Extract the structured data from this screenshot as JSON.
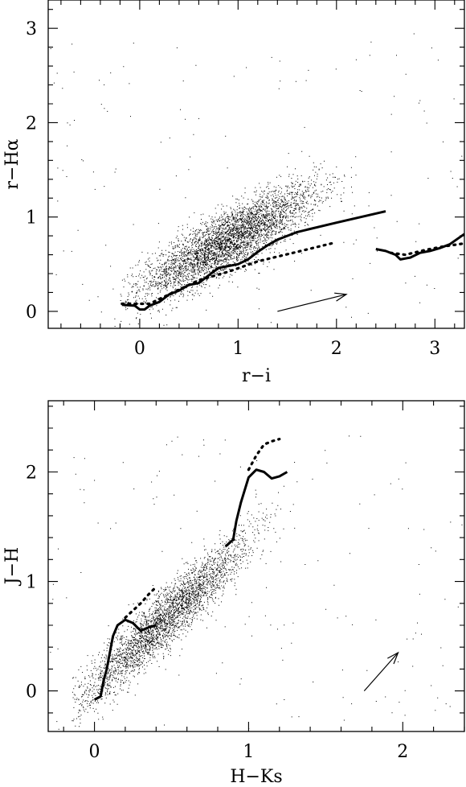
{
  "chart_data": [
    {
      "type": "scatter",
      "title": "",
      "xlabel": "r−i",
      "ylabel": "r−Hα",
      "xlim": [
        -0.93,
        3.3
      ],
      "ylim": [
        -0.18,
        3.3
      ],
      "xticks": [
        0,
        1,
        2,
        3
      ],
      "yticks": [
        0,
        1,
        2,
        3
      ],
      "grid": false,
      "legend": "none",
      "point_cloud": {
        "description_values": "dense cloud of individual stars",
        "n_points": 4200,
        "center": [
          0.9,
          0.75
        ],
        "spread": [
          0.45,
          0.35
        ],
        "slope": 0.55,
        "x_range": [
          0.0,
          2.2
        ],
        "color": "#000000"
      },
      "series": [
        {
          "style": "solid",
          "points": [
            [
              -0.18,
              0.07
            ],
            [
              -0.05,
              0.06
            ],
            [
              0.0,
              0.02
            ],
            [
              0.05,
              0.02
            ],
            [
              0.1,
              0.06
            ],
            [
              0.2,
              0.1
            ],
            [
              0.3,
              0.18
            ],
            [
              0.4,
              0.22
            ],
            [
              0.5,
              0.28
            ],
            [
              0.6,
              0.3
            ],
            [
              0.7,
              0.38
            ],
            [
              0.8,
              0.46
            ],
            [
              0.9,
              0.48
            ],
            [
              1.0,
              0.5
            ],
            [
              1.1,
              0.55
            ],
            [
              1.2,
              0.63
            ],
            [
              1.3,
              0.7
            ],
            [
              1.4,
              0.76
            ],
            [
              1.5,
              0.8
            ],
            [
              1.6,
              0.84
            ],
            [
              2.0,
              0.94
            ],
            [
              2.5,
              1.06
            ]
          ]
        },
        {
          "style": "dotted",
          "points": [
            [
              -0.18,
              0.08
            ],
            [
              0.1,
              0.08
            ],
            [
              0.3,
              0.18
            ],
            [
              0.6,
              0.33
            ],
            [
              0.9,
              0.42
            ],
            [
              1.2,
              0.53
            ],
            [
              1.6,
              0.63
            ],
            [
              1.95,
              0.72
            ]
          ]
        },
        {
          "style": "solid",
          "points": [
            [
              2.4,
              0.66
            ],
            [
              2.5,
              0.64
            ],
            [
              2.6,
              0.6
            ],
            [
              2.65,
              0.55
            ],
            [
              2.75,
              0.57
            ],
            [
              2.85,
              0.62
            ],
            [
              2.95,
              0.64
            ],
            [
              3.05,
              0.67
            ],
            [
              3.15,
              0.71
            ],
            [
              3.3,
              0.82
            ]
          ]
        },
        {
          "style": "dotted",
          "points": [
            [
              2.55,
              0.62
            ],
            [
              2.7,
              0.6
            ],
            [
              2.9,
              0.65
            ],
            [
              3.1,
              0.69
            ],
            [
              3.3,
              0.72
            ]
          ]
        }
      ],
      "reddening_vector": {
        "from": [
          1.4,
          0.0
        ],
        "to": [
          2.1,
          0.18
        ]
      }
    },
    {
      "type": "scatter",
      "title": "",
      "xlabel": "H−Ks",
      "ylabel": "J−H",
      "xlim": [
        -0.3,
        2.4
      ],
      "ylim": [
        -0.37,
        2.65
      ],
      "xticks": [
        0,
        1,
        2
      ],
      "yticks": [
        0,
        1,
        2
      ],
      "grid": false,
      "legend": "none",
      "point_cloud": {
        "description_values": "dense cloud of individual stars",
        "n_points": 3200,
        "center": [
          0.45,
          0.65
        ],
        "spread": [
          0.28,
          0.3
        ],
        "slope": 1.3,
        "x_range": [
          0.05,
          1.6
        ],
        "color": "#000000"
      },
      "series": [
        {
          "style": "solid",
          "points": [
            [
              0.0,
              -0.08
            ],
            [
              0.04,
              -0.05
            ],
            [
              0.06,
              0.1
            ],
            [
              0.08,
              0.2
            ],
            [
              0.1,
              0.35
            ],
            [
              0.12,
              0.5
            ],
            [
              0.15,
              0.6
            ],
            [
              0.2,
              0.65
            ],
            [
              0.25,
              0.62
            ],
            [
              0.3,
              0.55
            ],
            [
              0.35,
              0.58
            ],
            [
              0.4,
              0.6
            ]
          ]
        },
        {
          "style": "dotted",
          "points": [
            [
              0.2,
              0.67
            ],
            [
              0.3,
              0.8
            ],
            [
              0.35,
              0.88
            ],
            [
              0.4,
              0.95
            ]
          ]
        },
        {
          "style": "solid",
          "points": [
            [
              0.85,
              1.32
            ],
            [
              0.9,
              1.38
            ],
            [
              0.92,
              1.55
            ],
            [
              0.95,
              1.72
            ],
            [
              1.0,
              1.95
            ],
            [
              1.05,
              2.02
            ],
            [
              1.1,
              2.0
            ],
            [
              1.15,
              1.94
            ],
            [
              1.2,
              1.96
            ],
            [
              1.25,
              2.0
            ]
          ]
        },
        {
          "style": "dotted",
          "points": [
            [
              1.0,
              2.02
            ],
            [
              1.05,
              2.15
            ],
            [
              1.1,
              2.25
            ],
            [
              1.15,
              2.28
            ],
            [
              1.2,
              2.3
            ]
          ]
        }
      ],
      "reddening_vector": {
        "from": [
          1.75,
          0.0
        ],
        "to": [
          1.97,
          0.35
        ]
      }
    }
  ]
}
